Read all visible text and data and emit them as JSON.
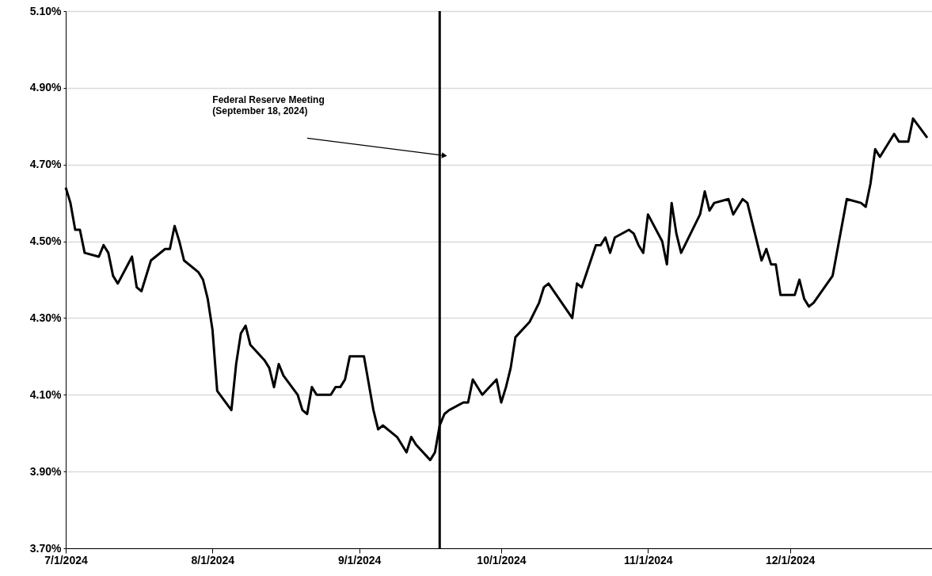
{
  "chart_data": {
    "type": "line",
    "x": [
      "2024-07-01",
      "2024-07-02",
      "2024-07-03",
      "2024-07-04",
      "2024-07-05",
      "2024-07-08",
      "2024-07-09",
      "2024-07-10",
      "2024-07-11",
      "2024-07-12",
      "2024-07-15",
      "2024-07-16",
      "2024-07-17",
      "2024-07-19",
      "2024-07-22",
      "2024-07-23",
      "2024-07-24",
      "2024-07-25",
      "2024-07-26",
      "2024-07-29",
      "2024-07-30",
      "2024-07-31",
      "2024-08-01",
      "2024-08-02",
      "2024-08-05",
      "2024-08-06",
      "2024-08-07",
      "2024-08-08",
      "2024-08-09",
      "2024-08-12",
      "2024-08-13",
      "2024-08-14",
      "2024-08-15",
      "2024-08-16",
      "2024-08-19",
      "2024-08-20",
      "2024-08-21",
      "2024-08-22",
      "2024-08-23",
      "2024-08-26",
      "2024-08-27",
      "2024-08-28",
      "2024-08-29",
      "2024-08-30",
      "2024-09-02",
      "2024-09-04",
      "2024-09-05",
      "2024-09-06",
      "2024-09-09",
      "2024-09-10",
      "2024-09-11",
      "2024-09-12",
      "2024-09-13",
      "2024-09-16",
      "2024-09-17",
      "2024-09-18",
      "2024-09-19",
      "2024-09-20",
      "2024-09-23",
      "2024-09-24",
      "2024-09-25",
      "2024-09-27",
      "2024-09-30",
      "2024-10-01",
      "2024-10-02",
      "2024-10-03",
      "2024-10-04",
      "2024-10-07",
      "2024-10-09",
      "2024-10-10",
      "2024-10-11",
      "2024-10-16",
      "2024-10-17",
      "2024-10-18",
      "2024-10-21",
      "2024-10-22",
      "2024-10-23",
      "2024-10-24",
      "2024-10-25",
      "2024-10-28",
      "2024-10-29",
      "2024-10-30",
      "2024-10-31",
      "2024-11-01",
      "2024-11-04",
      "2024-11-05",
      "2024-11-06",
      "2024-11-07",
      "2024-11-08",
      "2024-11-12",
      "2024-11-13",
      "2024-11-14",
      "2024-11-15",
      "2024-11-18",
      "2024-11-19",
      "2024-11-21",
      "2024-11-22",
      "2024-11-25",
      "2024-11-26",
      "2024-11-27",
      "2024-11-28",
      "2024-11-29",
      "2024-12-02",
      "2024-12-03",
      "2024-12-04",
      "2024-12-05",
      "2024-12-06",
      "2024-12-10",
      "2024-12-13",
      "2024-12-16",
      "2024-12-17",
      "2024-12-18",
      "2024-12-19",
      "2024-12-20",
      "2024-12-23",
      "2024-12-24",
      "2024-12-26",
      "2024-12-27",
      "2024-12-30"
    ],
    "series": [
      {
        "color": "#000000",
        "values": [
          4.64,
          4.6,
          4.53,
          4.53,
          4.47,
          4.46,
          4.49,
          4.47,
          4.41,
          4.39,
          4.46,
          4.38,
          4.37,
          4.45,
          4.48,
          4.48,
          4.54,
          4.5,
          4.45,
          4.42,
          4.4,
          4.35,
          4.27,
          4.11,
          4.06,
          4.18,
          4.26,
          4.28,
          4.23,
          4.19,
          4.17,
          4.12,
          4.18,
          4.15,
          4.1,
          4.06,
          4.05,
          4.12,
          4.1,
          4.1,
          4.12,
          4.12,
          4.14,
          4.2,
          4.2,
          4.06,
          4.01,
          4.02,
          3.99,
          3.97,
          3.95,
          3.99,
          3.97,
          3.93,
          3.95,
          4.02,
          4.05,
          4.06,
          4.08,
          4.08,
          4.14,
          4.1,
          4.14,
          4.08,
          4.12,
          4.17,
          4.25,
          4.29,
          4.34,
          4.38,
          4.39,
          4.3,
          4.39,
          4.38,
          4.49,
          4.49,
          4.51,
          4.47,
          4.51,
          4.53,
          4.52,
          4.49,
          4.47,
          4.57,
          4.5,
          4.44,
          4.6,
          4.52,
          4.47,
          4.57,
          4.63,
          4.58,
          4.6,
          4.61,
          4.57,
          4.61,
          4.6,
          4.45,
          4.48,
          4.44,
          4.44,
          4.36,
          4.36,
          4.4,
          4.35,
          4.33,
          4.34,
          4.41,
          4.61,
          4.6,
          4.59,
          4.65,
          4.74,
          4.72,
          4.78,
          4.76,
          4.76,
          4.82,
          4.77
        ]
      }
    ],
    "xlim": [
      "2024-07-01",
      "2024-12-31"
    ],
    "xticks": [
      {
        "value": "2024-07-01",
        "label": "7/1/2024"
      },
      {
        "value": "2024-08-01",
        "label": "8/1/2024"
      },
      {
        "value": "2024-09-01",
        "label": "9/1/2024"
      },
      {
        "value": "2024-10-01",
        "label": "10/1/2024"
      },
      {
        "value": "2024-11-01",
        "label": "11/1/2024"
      },
      {
        "value": "2024-12-01",
        "label": "12/1/2024"
      }
    ],
    "ylim": [
      3.7,
      5.1
    ],
    "yticks": [
      {
        "value": 3.7,
        "label": "3.70%"
      },
      {
        "value": 3.9,
        "label": "3.90%"
      },
      {
        "value": 4.1,
        "label": "4.10%"
      },
      {
        "value": 4.3,
        "label": "4.30%"
      },
      {
        "value": 4.5,
        "label": "4.50%"
      },
      {
        "value": 4.7,
        "label": "4.70%"
      },
      {
        "value": 4.9,
        "label": "4.90%"
      },
      {
        "value": 5.1,
        "label": "5.10%"
      }
    ],
    "ref_lines": [
      {
        "axis": "x",
        "value": "2024-09-18",
        "label": "Federal Reserve Meeting\n(September 18, 2024)",
        "color": "#000000",
        "line_style": "solid"
      }
    ],
    "grid": "y",
    "marker": "none",
    "line_style": "solid"
  }
}
